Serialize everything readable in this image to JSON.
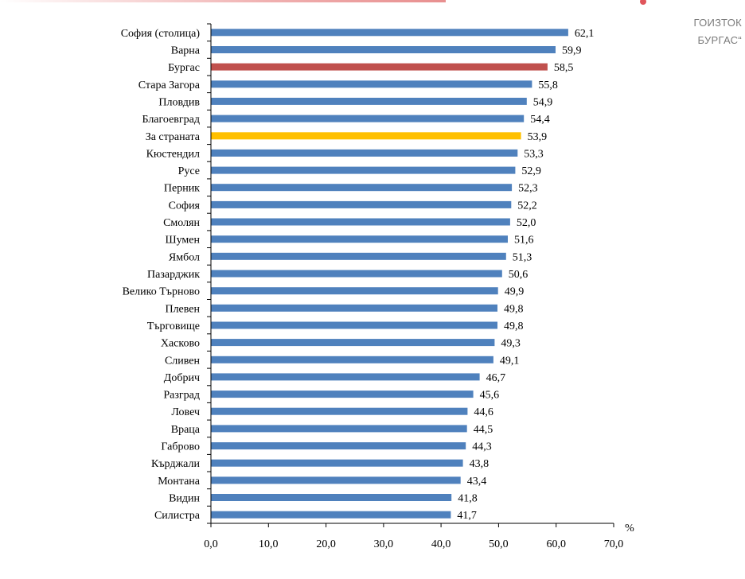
{
  "header_fragment": {
    "line1": "ГОИЗТОК",
    "line2": "БУРГАС“"
  },
  "colors": {
    "default_bar": "#4f81bd",
    "highlight_city": "#c0504d",
    "highlight_country": "#ffc000"
  },
  "chart_data": {
    "type": "bar",
    "orientation": "horizontal",
    "categories": [
      "София (столица)",
      "Варна",
      "Бургас",
      "Стара Загора",
      "Пловдив",
      "Благоевград",
      "За страната",
      "Кюстендил",
      "Русе",
      "Перник",
      "София",
      "Смолян",
      "Шумен",
      "Ямбол",
      "Пазарджик",
      "Велико Търново",
      "Плевен",
      "Търговище",
      "Хасково",
      "Сливен",
      "Добрич",
      "Разград",
      "Ловеч",
      "Враца",
      "Габрово",
      "Кърджали",
      "Монтана",
      "Видин",
      "Силистра"
    ],
    "values": [
      62.1,
      59.9,
      58.5,
      55.8,
      54.9,
      54.4,
      53.9,
      53.3,
      52.9,
      52.3,
      52.2,
      52.0,
      51.6,
      51.3,
      50.6,
      49.9,
      49.8,
      49.8,
      49.3,
      49.1,
      46.7,
      45.6,
      44.6,
      44.5,
      44.3,
      43.8,
      43.4,
      41.8,
      41.7
    ],
    "value_labels": [
      "62,1",
      "59,9",
      "58,5",
      "55,8",
      "54,9",
      "54,4",
      "53,9",
      "53,3",
      "52,9",
      "52,3",
      "52,2",
      "52,0",
      "51,6",
      "51,3",
      "50,6",
      "49,9",
      "49,8",
      "49,8",
      "49,3",
      "49,1",
      "46,7",
      "45,6",
      "44,6",
      "44,5",
      "44,3",
      "43,8",
      "43,4",
      "41,8",
      "41,7"
    ],
    "highlights": {
      "Бургас": "highlight_city",
      "За страната": "highlight_country"
    },
    "xlim": [
      0,
      70
    ],
    "xticks": [
      0,
      10,
      20,
      30,
      40,
      50,
      60,
      70
    ],
    "xtick_labels": [
      "0,0",
      "10,0",
      "20,0",
      "30,0",
      "40,0",
      "50,0",
      "60,0",
      "70,0"
    ],
    "unit_label": "%",
    "grid": false,
    "legend": "none"
  }
}
